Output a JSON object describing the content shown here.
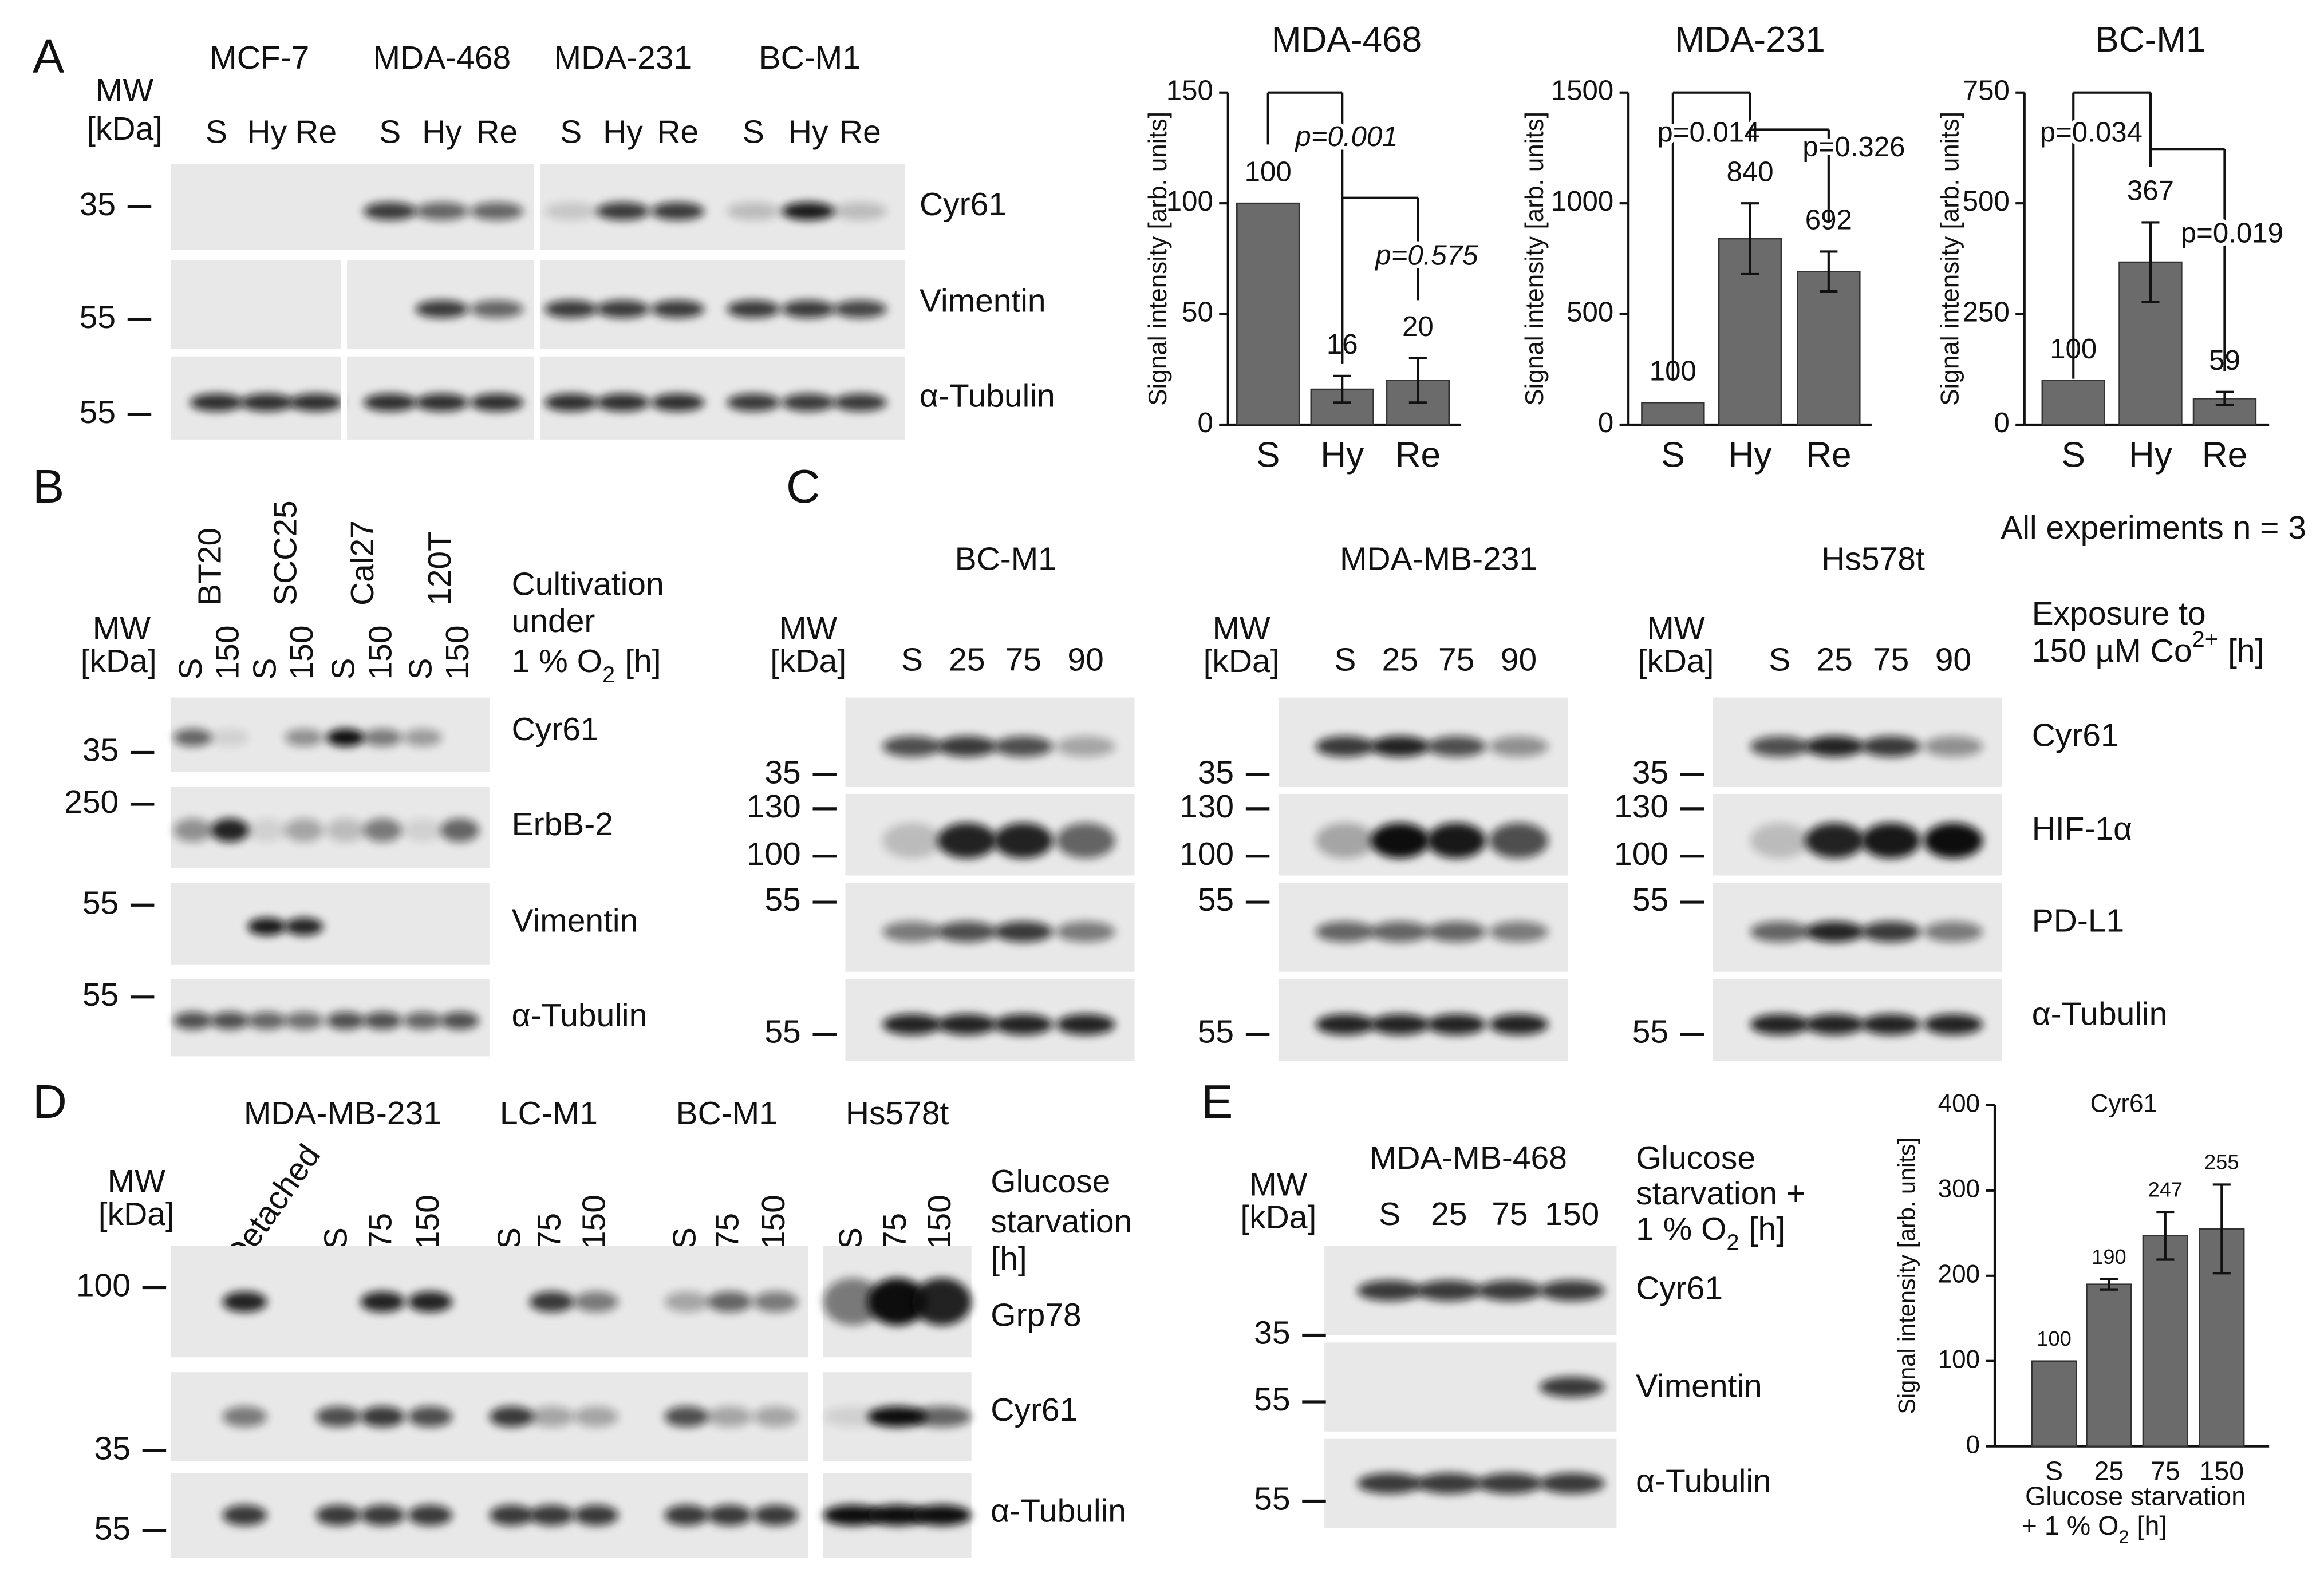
{
  "panels": {
    "A": {
      "label": "A",
      "mw": [
        "MW",
        "[kDa]"
      ],
      "cell_lines": [
        "MCF-7",
        "MDA-468",
        "MDA-231",
        "BC-M1"
      ],
      "lanes": [
        "S",
        "Hy",
        "Re",
        "S",
        "Hy",
        "Re",
        "S",
        "Hy",
        "Re",
        "S",
        "Hy",
        "Re"
      ],
      "markers": [
        35,
        55,
        55
      ],
      "proteins": [
        "Cyr61",
        "Vimentin",
        "α-Tubulin"
      ],
      "charts": [
        {
          "type": "bar",
          "title": "MDA-468",
          "ylabel": "Signal intensity [arb. units]",
          "categories": [
            "S",
            "Hy",
            "Re"
          ],
          "values": [
            100,
            16,
            20
          ],
          "errors": [
            0,
            6,
            10
          ],
          "ylim": [
            0,
            150
          ],
          "yticks": [
            0,
            50,
            100,
            150
          ],
          "p_values": [
            "p=0.001",
            "p=0.575"
          ]
        },
        {
          "type": "bar",
          "title": "MDA-231",
          "ylabel": "Signal intensity [arb. units]",
          "categories": [
            "S",
            "Hy",
            "Re"
          ],
          "values": [
            100,
            840,
            692
          ],
          "errors": [
            0,
            160,
            90
          ],
          "ylim": [
            0,
            1500
          ],
          "yticks": [
            0,
            500,
            1000,
            1500
          ],
          "p_values": [
            "p=0.014",
            "p=0.326"
          ]
        },
        {
          "type": "bar",
          "title": "BC-M1",
          "ylabel": "Signal intensity [arb. units]",
          "categories": [
            "S",
            "Hy",
            "Re"
          ],
          "values": [
            100,
            367,
            59
          ],
          "errors": [
            0,
            90,
            15
          ],
          "ylim": [
            0,
            750
          ],
          "yticks": [
            0,
            250,
            500,
            750
          ],
          "p_values": [
            "p=0.034",
            "p=0.019"
          ]
        }
      ],
      "note": "All experiments n = 3"
    },
    "B": {
      "label": "B",
      "mw": [
        "MW",
        "[kDa]"
      ],
      "cell_lines": [
        "BT20",
        "SCC25",
        "Cal27",
        "120T"
      ],
      "lanes": [
        "S",
        "150",
        "S",
        "150",
        "S",
        "150",
        "S",
        "150"
      ],
      "condition": [
        [
          "Cultivation"
        ],
        [
          "under"
        ],
        [
          "1 % O",
          "2",
          "[h]"
        ]
      ],
      "markers": [
        35,
        250,
        55,
        55
      ],
      "proteins": [
        "Cyr61",
        "ErbB-2",
        "Vimentin",
        "α-Tubulin"
      ]
    },
    "C": {
      "label": "C",
      "blots": [
        {
          "title": "BC-M1",
          "mw": [
            "MW",
            "[kDa]"
          ],
          "lanes": [
            "S",
            "25",
            "75",
            "90"
          ],
          "markers": [
            35,
            130,
            100,
            55,
            55
          ]
        },
        {
          "title": "MDA-MB-231",
          "mw": [
            "MW",
            "[kDa]"
          ],
          "lanes": [
            "S",
            "25",
            "75",
            "90"
          ],
          "markers": [
            35,
            130,
            100,
            55,
            55
          ]
        },
        {
          "title": "Hs578t",
          "mw": [
            "MW",
            "[kDa]"
          ],
          "lanes": [
            "S",
            "25",
            "75",
            "90"
          ],
          "markers": [
            35,
            130,
            100,
            55,
            55
          ]
        }
      ],
      "condition": [
        [
          "Exposure to"
        ],
        [
          "150 µM Co",
          "2+",
          "[h]"
        ]
      ],
      "proteins": [
        "Cyr61",
        "HIF-1α",
        "PD-L1",
        "α-Tubulin"
      ]
    },
    "D": {
      "label": "D",
      "mw": [
        "MW",
        "[kDa]"
      ],
      "cell_lines": [
        "MDA-MB-231",
        "LC-M1",
        "BC-M1",
        "Hs578t"
      ],
      "lanes": [
        "Detached",
        "S",
        "75",
        "150",
        "S",
        "75",
        "150",
        "S",
        "75",
        "150",
        "S",
        "75",
        "150"
      ],
      "condition": [
        [
          "Glucose"
        ],
        [
          "starvation"
        ],
        [
          "[h]"
        ]
      ],
      "markers": [
        100,
        35,
        55
      ],
      "proteins": [
        "Grp78",
        "Cyr61",
        "α-Tubulin"
      ]
    },
    "E": {
      "label": "E",
      "mw": [
        "MW",
        "[kDa]"
      ],
      "cell_line": "MDA-MB-468",
      "lanes": [
        "S",
        "25",
        "75",
        "150"
      ],
      "condition": [
        [
          "Glucose"
        ],
        [
          "starvation +"
        ],
        [
          "1 % O",
          "2",
          "[h]"
        ]
      ],
      "markers": [
        35,
        55,
        55
      ],
      "proteins": [
        "Cyr61",
        "Vimentin",
        "α-Tubulin"
      ],
      "chart": {
        "type": "bar",
        "title": "Cyr61",
        "ylabel": "Signal intensity [arb. units]",
        "categories": [
          "S",
          "25",
          "75",
          "150"
        ],
        "values": [
          100,
          190,
          247,
          255
        ],
        "errors": [
          0,
          6,
          28,
          52
        ],
        "ylim": [
          0,
          400
        ],
        "yticks": [
          0,
          100,
          200,
          300,
          400
        ],
        "xlabel": [
          [
            "Glucose starvation"
          ],
          [
            "+ 1 % O",
            "2",
            "[h]"
          ]
        ]
      }
    }
  }
}
